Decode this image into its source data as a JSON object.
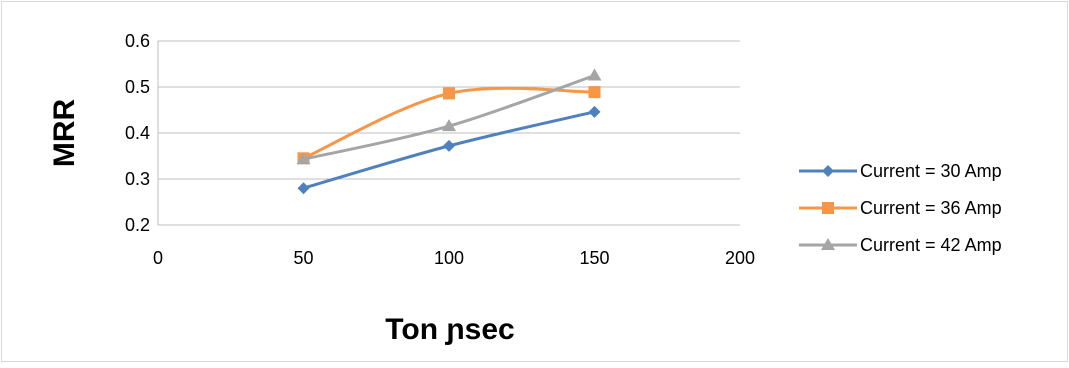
{
  "chart_data": {
    "type": "line",
    "title": "",
    "xlabel": "Ton ɲsec",
    "ylabel": "MRR",
    "xlim": [
      0,
      200
    ],
    "ylim": [
      0.2,
      0.6
    ],
    "x_ticks": [
      0,
      50,
      100,
      150,
      200
    ],
    "y_ticks": [
      0.2,
      0.3,
      0.4,
      0.5,
      0.6
    ],
    "x_tick_labels": [
      "0",
      "50",
      "100",
      "150",
      "200"
    ],
    "y_tick_labels": [
      "0.2",
      "0.3",
      "0.4",
      "0.5",
      "0.6"
    ],
    "grid": "horizontal",
    "smooth": true,
    "legend_position": "right",
    "x": [
      50,
      100,
      150
    ],
    "series": [
      {
        "name": "Current = 30 Amp",
        "values": [
          0.28,
          0.372,
          0.446
        ],
        "color": "#4f81bd",
        "marker": "diamond"
      },
      {
        "name": "Current = 36 Amp",
        "values": [
          0.345,
          0.486,
          0.489
        ],
        "color": "#f79646",
        "marker": "square"
      },
      {
        "name": "Current = 42 Amp",
        "values": [
          0.343,
          0.415,
          0.525
        ],
        "color": "#a5a5a5",
        "marker": "triangle"
      }
    ]
  }
}
